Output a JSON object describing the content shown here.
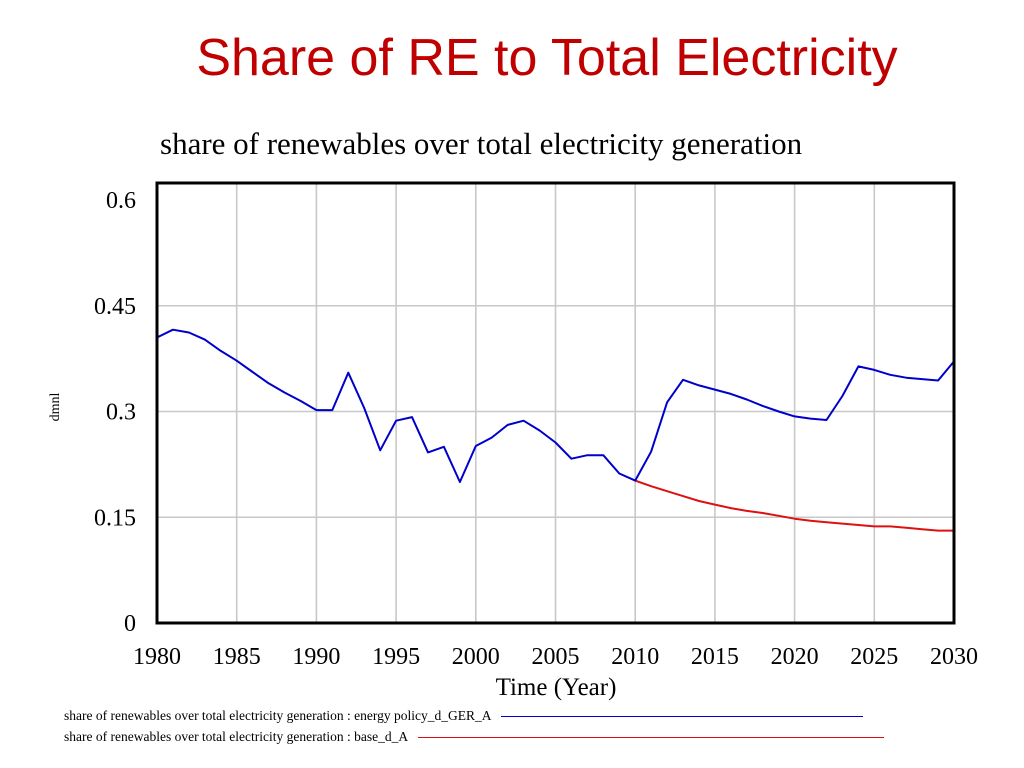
{
  "slide": {
    "title": "Share of RE to Total Electricity"
  },
  "chart_data": {
    "type": "line",
    "title": "share of renewables over total electricity generation",
    "xlabel": "Time (Year)",
    "ylabel": "dmnl",
    "xlim": [
      1980,
      2030
    ],
    "ylim": [
      0,
      0.6
    ],
    "xticks": [
      "1980",
      "1985",
      "1990",
      "1995",
      "2000",
      "2005",
      "2010",
      "2015",
      "2020",
      "2025",
      "2030"
    ],
    "yticks": [
      "0",
      "0.15",
      "0.3",
      "0.45",
      "0.6"
    ],
    "grid": true,
    "legend_position": "bottom",
    "series": [
      {
        "name": "share of renewables over total electricity generation : energy policy_d_GER_A",
        "color": "#0000cc",
        "x": [
          1980,
          1981,
          1982,
          1983,
          1984,
          1985,
          1986,
          1987,
          1988,
          1989,
          1990,
          1991,
          1992,
          1993,
          1994,
          1995,
          1996,
          1997,
          1998,
          1999,
          2000,
          2001,
          2002,
          2003,
          2004,
          2005,
          2006,
          2007,
          2008,
          2009,
          2010,
          2011,
          2012,
          2013,
          2014,
          2015,
          2016,
          2017,
          2018,
          2019,
          2020,
          2021,
          2022,
          2023,
          2024,
          2025,
          2026,
          2027,
          2028,
          2029,
          2030
        ],
        "y": [
          0.405,
          0.416,
          0.412,
          0.402,
          0.386,
          0.372,
          0.356,
          0.34,
          0.327,
          0.315,
          0.302,
          0.302,
          0.355,
          0.305,
          0.245,
          0.287,
          0.292,
          0.242,
          0.25,
          0.2,
          0.251,
          0.263,
          0.281,
          0.287,
          0.273,
          0.256,
          0.233,
          0.238,
          0.238,
          0.212,
          0.202,
          0.243,
          0.313,
          0.345,
          0.337,
          0.331,
          0.325,
          0.317,
          0.308,
          0.3,
          0.293,
          0.29,
          0.288,
          0.322,
          0.364,
          0.359,
          0.352,
          0.348,
          0.346,
          0.344,
          0.371
        ]
      },
      {
        "name": "share of renewables over total electricity generation : base_d_A",
        "color": "#dd1111",
        "x": [
          2010,
          2011,
          2012,
          2013,
          2014,
          2015,
          2016,
          2017,
          2018,
          2019,
          2020,
          2021,
          2022,
          2023,
          2024,
          2025,
          2026,
          2027,
          2028,
          2029,
          2030
        ],
        "y": [
          0.202,
          0.194,
          0.187,
          0.18,
          0.173,
          0.168,
          0.163,
          0.159,
          0.156,
          0.152,
          0.148,
          0.145,
          0.143,
          0.141,
          0.139,
          0.137,
          0.137,
          0.135,
          0.133,
          0.131,
          0.131
        ]
      }
    ]
  }
}
